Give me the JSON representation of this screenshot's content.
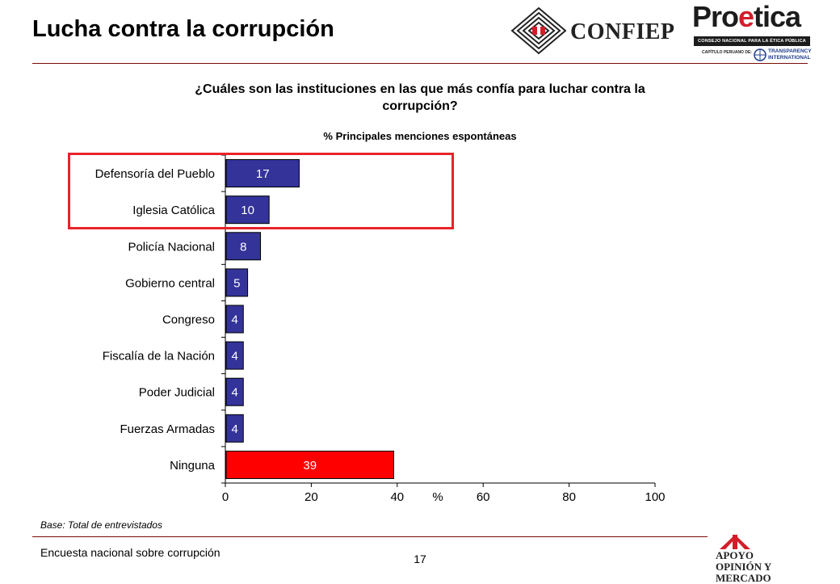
{
  "page": {
    "title": "Lucha contra la corrupción",
    "question": "¿Cuáles son las instituciones en las que más confía para luchar contra la corrupción?",
    "subtitle": "% Principales menciones espontáneas",
    "base_note": "Base: Total de entrevistados",
    "footer_survey": "Encuesta nacional sobre corrupción",
    "page_number": "17"
  },
  "logos": {
    "confiep": "CONFIEP",
    "proetica_pre": "Pro",
    "proetica_e": "e",
    "proetica_post": "tica",
    "proetica_band": "CONSEJO NACIONAL PARA LA ÉTICA PÚBLICA",
    "proetica_sub": "CAPÍTULO PERUANO DE:",
    "transparency": "TRANSPARENCY INTERNATIONAL",
    "apoyo": "APOYO\nOPINIÓN Y MERCADO"
  },
  "colors": {
    "bar": "#333399",
    "bar_highlight": "#ff0000",
    "highlight_box": "#e8232a",
    "rule": "#7a0a0a"
  },
  "chart_data": {
    "type": "bar",
    "orientation": "horizontal",
    "categories": [
      "Defensoría del Pueblo",
      "Iglesia Católica",
      "Policía Nacional",
      "Gobierno central",
      "Congreso",
      "Fiscalía de la Nación",
      "Poder Judicial",
      "Fuerzas Armadas",
      "Ninguna"
    ],
    "values": [
      17,
      10,
      8,
      5,
      4,
      4,
      4,
      4,
      39
    ],
    "highlighted_categories": [
      "Ninguna"
    ],
    "boxed_categories": [
      "Defensoría del Pueblo",
      "Iglesia Católica"
    ],
    "xlim": [
      0,
      100
    ],
    "xticks": [
      0,
      20,
      40,
      60,
      80,
      100
    ],
    "xlabel": "%",
    "grid": false
  }
}
